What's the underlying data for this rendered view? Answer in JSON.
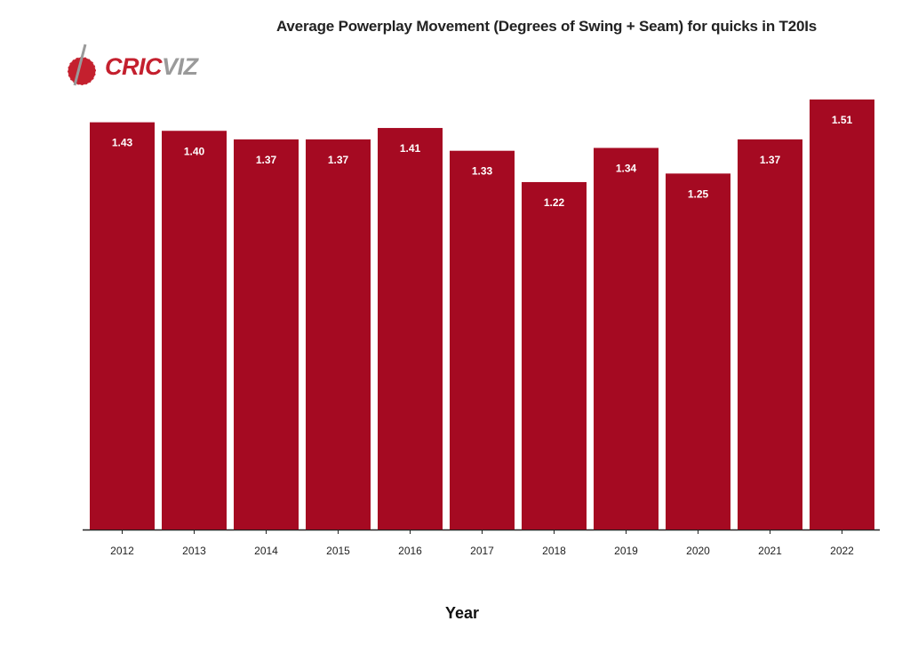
{
  "logo": {
    "text_part1": "CRIC",
    "text_part2": "VIZ"
  },
  "colors": {
    "bar": "#a50a22",
    "label": "#ffffff",
    "axis": "#222222",
    "brand_red": "#c4202e",
    "brand_gray": "#9a9a9a"
  },
  "chart_data": {
    "type": "bar",
    "title": "Average Powerplay Movement (Degrees of Swing + Seam) for quicks in T20Is",
    "xlabel": "Year",
    "ylabel": "",
    "ylim": [
      0,
      1.51
    ],
    "grid": false,
    "categories": [
      "2012",
      "2013",
      "2014",
      "2015",
      "2016",
      "2017",
      "2018",
      "2019",
      "2020",
      "2021",
      "2022"
    ],
    "values": [
      1.43,
      1.4,
      1.37,
      1.37,
      1.41,
      1.33,
      1.22,
      1.34,
      1.25,
      1.37,
      1.51
    ],
    "value_labels": [
      "1.43",
      "1.40",
      "1.37",
      "1.37",
      "1.41",
      "1.33",
      "1.22",
      "1.34",
      "1.25",
      "1.37",
      "1.51"
    ]
  }
}
